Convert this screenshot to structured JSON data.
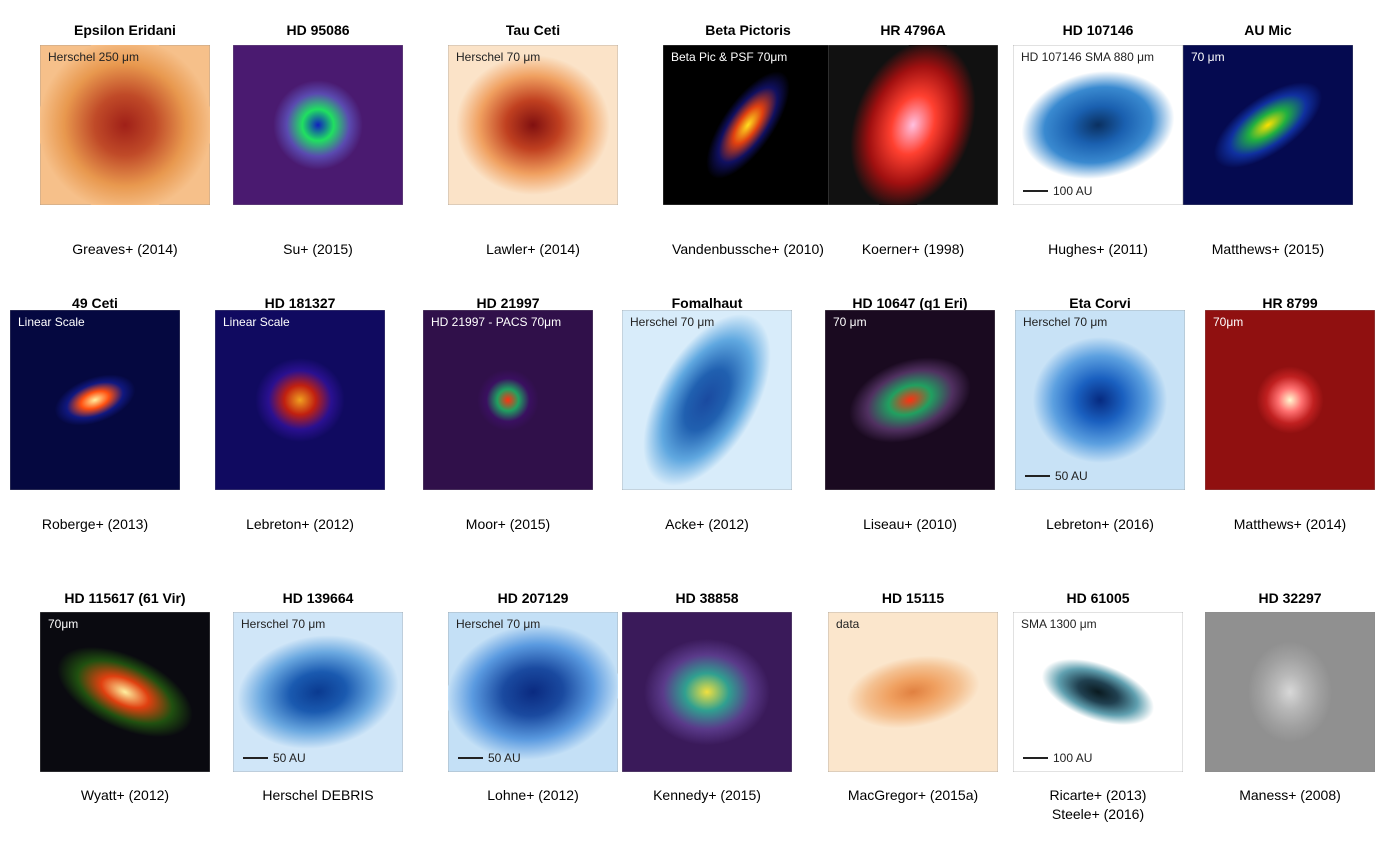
{
  "panels": [
    {
      "title": "Epsilon Eridani",
      "label": "Herschel 250 μm",
      "citation": [
        "Greaves+ (2014)"
      ]
    },
    {
      "title": "HD 95086",
      "citation": [
        "Su+ (2015)"
      ]
    },
    {
      "title": "Tau Ceti",
      "label": "Herschel 70 μm",
      "citation": [
        "Lawler+ (2014)"
      ]
    },
    {
      "title": "Beta Pictoris",
      "label": "Beta Pic & PSF 70μm",
      "citation": [
        "Vandenbussche+ (2010)"
      ]
    },
    {
      "title": "HR 4796A",
      "citation": [
        "Koerner+ (1998)"
      ]
    },
    {
      "title": "HD 107146",
      "label": "HD 107146 SMA 880 μm",
      "scale": "100 AU",
      "citation": [
        "Hughes+ (2011)"
      ]
    },
    {
      "title": "AU Mic",
      "label": "70 μm",
      "citation": [
        "Matthews+ (2015)"
      ]
    },
    {
      "title": "49 Ceti",
      "label": "Linear Scale",
      "citation": [
        "Roberge+ (2013)"
      ]
    },
    {
      "title": "HD 181327",
      "label": "Linear Scale",
      "citation": [
        "Lebreton+ (2012)"
      ]
    },
    {
      "title": "HD 21997",
      "label": "HD 21997 - PACS 70μm",
      "citation": [
        "Moor+ (2015)"
      ]
    },
    {
      "title": "Fomalhaut",
      "label": "Herschel 70 μm",
      "citation": [
        "Acke+ (2012)"
      ]
    },
    {
      "title": "HD 10647 (q1 Eri)",
      "label": "70 μm",
      "citation": [
        "Liseau+ (2010)"
      ]
    },
    {
      "title": "Eta Corvi",
      "label": "Herschel 70 μm",
      "scale": "50 AU",
      "citation": [
        "Lebreton+ (2016)"
      ]
    },
    {
      "title": "HR 8799",
      "label": "70μm",
      "citation": [
        "Matthews+ (2014)"
      ]
    },
    {
      "title": "HD 115617 (61 Vir)",
      "label": "70μm",
      "citation": [
        "Wyatt+ (2012)"
      ]
    },
    {
      "title": "HD 139664",
      "label": "Herschel 70 μm",
      "scale": "50 AU",
      "citation": [
        "Herschel DEBRIS"
      ]
    },
    {
      "title": "HD 207129",
      "label": "Herschel 70 μm",
      "scale": "50 AU",
      "citation": [
        "Lohne+ (2012)"
      ]
    },
    {
      "title": "HD 38858",
      "citation": [
        "Kennedy+ (2015)"
      ]
    },
    {
      "title": "HD 15115",
      "label": "data",
      "citation": [
        "MacGregor+ (2015a)"
      ]
    },
    {
      "title": "HD 61005",
      "label": "SMA 1300 μm",
      "scale": "100 AU",
      "citation": [
        "Ricarte+ (2013)",
        "Steele+ (2016)"
      ]
    },
    {
      "title": "HD 32297",
      "citation": [
        "Maness+ (2008)"
      ]
    }
  ]
}
